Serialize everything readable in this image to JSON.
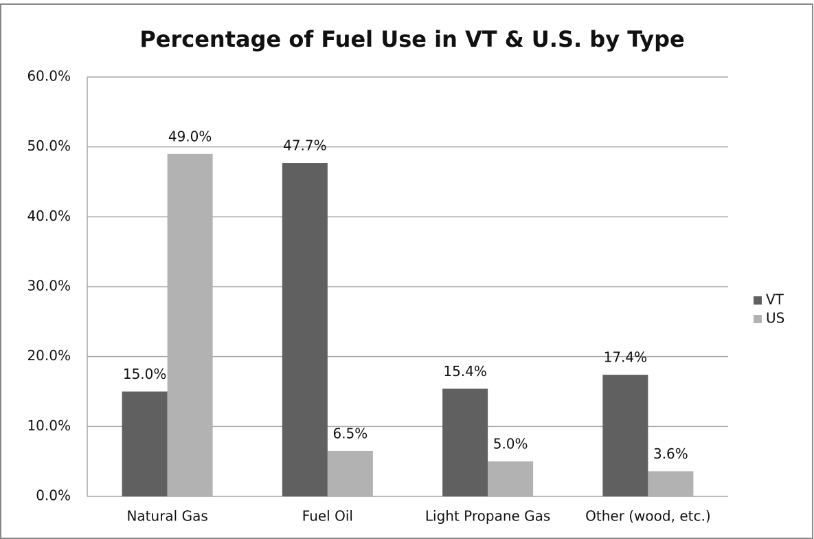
{
  "chart_data": {
    "type": "bar",
    "title": "Percentage of Fuel Use in VT & U.S. by Type",
    "categories": [
      "Natural Gas",
      "Fuel Oil",
      "Light Propane Gas",
      "Other (wood, etc.)"
    ],
    "series": [
      {
        "name": "VT",
        "color": "#606060",
        "values": [
          15.0,
          47.7,
          15.4,
          17.4
        ],
        "value_labels": [
          "15.0%",
          "47.7%",
          "15.4%",
          "17.4%"
        ]
      },
      {
        "name": "US",
        "color": "#b2b2b2",
        "values": [
          49.0,
          6.5,
          5.0,
          3.6
        ],
        "value_labels": [
          "49.0%",
          "6.5%",
          "5.0%",
          "3.6%"
        ]
      }
    ],
    "ylim": [
      0,
      60
    ],
    "yticks": [
      {
        "value": 0,
        "label": "0.0%"
      },
      {
        "value": 10,
        "label": "10.0%"
      },
      {
        "value": 20,
        "label": "20.0%"
      },
      {
        "value": 30,
        "label": "30.0%"
      },
      {
        "value": 40,
        "label": "40.0%"
      },
      {
        "value": 50,
        "label": "50.0%"
      },
      {
        "value": 60,
        "label": "60.0%"
      }
    ],
    "grid": true,
    "legend": "right"
  }
}
